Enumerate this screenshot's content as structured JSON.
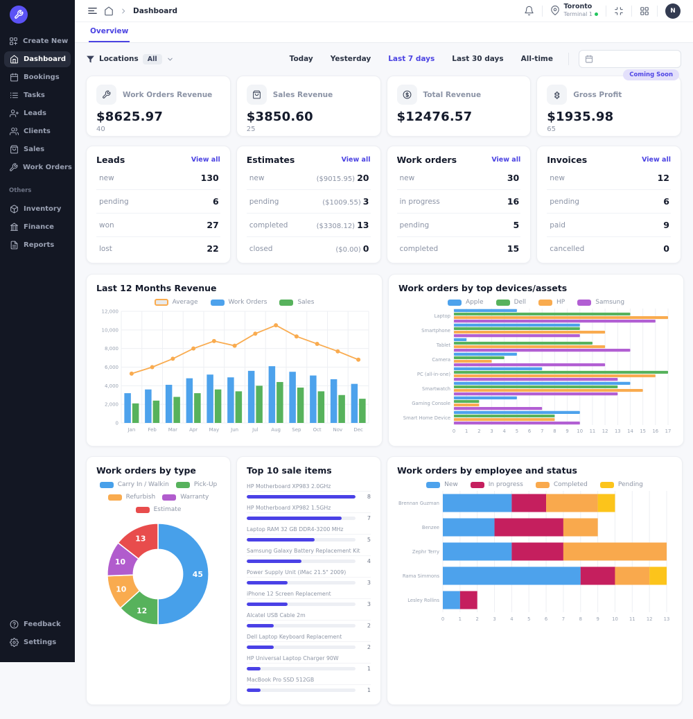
{
  "app": {
    "accent": "#4b43e2",
    "sidebar_bg": "#131723"
  },
  "topbar": {
    "breadcrumb": "Dashboard",
    "location": {
      "city": "Toronto",
      "terminal": "Terminal 1"
    },
    "avatar_initial": "N"
  },
  "tabs": {
    "overview": "Overview"
  },
  "filters": {
    "locations_label": "Locations",
    "locations_value": "All",
    "ranges": [
      "Today",
      "Yesterday",
      "Last 7 days",
      "Last 30 days",
      "All-time"
    ],
    "active_range": "Last 7 days"
  },
  "sidebar": {
    "main": [
      {
        "label": "Create New",
        "icon": "grid-plus",
        "active": false
      },
      {
        "label": "Dashboard",
        "icon": "home",
        "active": true
      },
      {
        "label": "Bookings",
        "icon": "calendar",
        "active": false
      },
      {
        "label": "Tasks",
        "icon": "list",
        "active": false
      },
      {
        "label": "Leads",
        "icon": "user-plus",
        "active": false
      },
      {
        "label": "Clients",
        "icon": "users",
        "active": false
      },
      {
        "label": "Sales",
        "icon": "bag",
        "active": false
      },
      {
        "label": "Work Orders",
        "icon": "tool",
        "active": false
      }
    ],
    "others_label": "Others",
    "others": [
      {
        "label": "Inventory",
        "icon": "box",
        "active": false
      },
      {
        "label": "Finance",
        "icon": "bank",
        "active": false
      },
      {
        "label": "Reports",
        "icon": "file",
        "active": false
      }
    ],
    "footer": [
      {
        "label": "Feedback",
        "icon": "help",
        "active": false
      },
      {
        "label": "Settings",
        "icon": "gear",
        "active": false
      }
    ]
  },
  "kpis": [
    {
      "label": "Work Orders Revenue",
      "icon": "tool",
      "value": "$8625.97",
      "count": "40",
      "badge": ""
    },
    {
      "label": "Sales Revenue",
      "icon": "bag",
      "value": "$3850.60",
      "count": "25",
      "badge": ""
    },
    {
      "label": "Total Revenue",
      "icon": "dollar",
      "value": "$12476.57",
      "count": "",
      "badge": ""
    },
    {
      "label": "Gross Profit",
      "icon": "puzzle",
      "value": "$1935.98",
      "count": "65",
      "badge": "Coming Soon"
    }
  ],
  "summary_cards": [
    {
      "title": "Leads",
      "link": "View all",
      "rows": [
        {
          "label": "new",
          "sub": "",
          "value": "130"
        },
        {
          "label": "pending",
          "sub": "",
          "value": "6"
        },
        {
          "label": "won",
          "sub": "",
          "value": "27"
        },
        {
          "label": "lost",
          "sub": "",
          "value": "22"
        }
      ]
    },
    {
      "title": "Estimates",
      "link": "View all",
      "rows": [
        {
          "label": "new",
          "sub": "($9015.95)",
          "value": "20"
        },
        {
          "label": "pending",
          "sub": "($1009.55)",
          "value": "3"
        },
        {
          "label": "completed",
          "sub": "($3308.12)",
          "value": "13"
        },
        {
          "label": "closed",
          "sub": "($0.00)",
          "value": "0"
        }
      ]
    },
    {
      "title": "Work orders",
      "link": "View all",
      "rows": [
        {
          "label": "new",
          "sub": "",
          "value": "30"
        },
        {
          "label": "in progress",
          "sub": "",
          "value": "16"
        },
        {
          "label": "pending",
          "sub": "",
          "value": "5"
        },
        {
          "label": "completed",
          "sub": "",
          "value": "15"
        }
      ]
    },
    {
      "title": "Invoices",
      "link": "View all",
      "rows": [
        {
          "label": "new",
          "sub": "",
          "value": "12"
        },
        {
          "label": "pending",
          "sub": "",
          "value": "6"
        },
        {
          "label": "paid",
          "sub": "",
          "value": "9"
        },
        {
          "label": "cancelled",
          "sub": "",
          "value": "0"
        }
      ]
    }
  ],
  "chart_data": [
    {
      "type": "bar",
      "title": "Last 12 Months Revenue",
      "categories": [
        "Jan",
        "Feb",
        "Mar",
        "Apr",
        "May",
        "Jun",
        "Jul",
        "Aug",
        "Sep",
        "Oct",
        "Nov",
        "Dec"
      ],
      "series": [
        {
          "name": "Work Orders",
          "color": "#4da2ec",
          "values": [
            3200,
            3600,
            4100,
            4800,
            5200,
            4900,
            5600,
            6100,
            5500,
            5100,
            4700,
            4200
          ]
        },
        {
          "name": "Sales",
          "color": "#57b25c",
          "values": [
            2100,
            2400,
            2800,
            3200,
            3600,
            3400,
            4000,
            4400,
            3800,
            3400,
            3000,
            2600
          ]
        }
      ],
      "line_series": {
        "name": "Average",
        "color": "#f9ab4f",
        "values": [
          5300,
          6000,
          6900,
          8000,
          8800,
          8300,
          9600,
          10500,
          9300,
          8500,
          7700,
          6800
        ]
      },
      "ylim": [
        0,
        12000
      ],
      "ystep": 2000,
      "grid": true,
      "legend_position": "top"
    },
    {
      "type": "bar",
      "title": "Work orders by top devices/assets",
      "orientation": "horizontal",
      "categories": [
        "Laptop",
        "Smartphone",
        "Tablet",
        "Camera",
        "PC (all-in-one)",
        "Smartwatch",
        "Gaming Console",
        "Smart Home Device"
      ],
      "series": [
        {
          "name": "Apple",
          "color": "#4da2ec",
          "values": [
            5,
            10,
            1,
            5,
            7,
            14,
            5,
            10
          ]
        },
        {
          "name": "Dell",
          "color": "#57b25c",
          "values": [
            14,
            10,
            11,
            4,
            17,
            13,
            2,
            8
          ]
        },
        {
          "name": "HP",
          "color": "#f9ab4f",
          "values": [
            17,
            12,
            12,
            3,
            16,
            15,
            2,
            8
          ]
        },
        {
          "name": "Samsung",
          "color": "#b25fd3",
          "values": [
            16,
            10,
            14,
            12,
            13,
            13,
            7,
            10
          ]
        }
      ],
      "xlim": [
        0,
        17
      ],
      "xstep": 1,
      "grid": true,
      "legend_position": "top"
    },
    {
      "type": "pie",
      "title": "Work orders by type",
      "donut": true,
      "labels": [
        "Carry In / Walkin",
        "Pick-Up",
        "Refurbish",
        "Warranty",
        "Estimate"
      ],
      "values": [
        45,
        12,
        10,
        10,
        13
      ],
      "colors": [
        "#47a0ea",
        "#57b25c",
        "#f9ab4f",
        "#b15ccd",
        "#e84c4c"
      ],
      "legend_order": [
        "Carry In / Walkin",
        "Pick-Up",
        "Refurbish",
        "Warranty",
        "Estimate"
      ],
      "legend_position": "top"
    },
    {
      "type": "table",
      "title": "Top 10 sale items",
      "max_value": 8,
      "items": [
        {
          "name": "HP Motherboard XP983 2.0GHz",
          "value": 8
        },
        {
          "name": "HP Motherboard XP982 1.5GHz",
          "value": 7
        },
        {
          "name": "Laptop RAM 32 GB DDR4-3200 MHz",
          "value": 5
        },
        {
          "name": "Samsung Galaxy Battery Replacement Kit",
          "value": 4
        },
        {
          "name": "Power Supply Unit (iMac 21.5\" 2009)",
          "value": 3
        },
        {
          "name": "iPhone 12 Screen Replacement",
          "value": 3
        },
        {
          "name": "Alcatel USB Cable 2m",
          "value": 2
        },
        {
          "name": "Dell Laptop Keyboard Replacement",
          "value": 2
        },
        {
          "name": "HP Universal Laptop Charger 90W",
          "value": 1
        },
        {
          "name": "MacBook Pro SSD 512GB",
          "value": 1
        }
      ],
      "bar_color": "#4a41e6"
    },
    {
      "type": "bar",
      "title": "Work orders by employee and status",
      "orientation": "horizontal",
      "stacked": true,
      "categories": [
        "Brennan Guzman",
        "Benzee",
        "Zephr Terry",
        "Rama Simmons",
        "Lesley Rollins"
      ],
      "series": [
        {
          "name": "New",
          "color": "#4da2ec",
          "values": [
            4,
            3,
            4,
            8,
            1
          ]
        },
        {
          "name": "In progress",
          "color": "#c51f5e",
          "values": [
            2,
            4,
            3,
            2,
            1
          ]
        },
        {
          "name": "Completed",
          "color": "#f9a94d",
          "values": [
            3,
            2,
            6,
            2,
            0
          ]
        },
        {
          "name": "Pending",
          "color": "#fcc41b",
          "values": [
            1,
            0,
            0,
            1,
            0
          ]
        }
      ],
      "xlim": [
        0,
        13
      ],
      "xstep": 1,
      "grid": true,
      "legend_position": "top"
    }
  ]
}
